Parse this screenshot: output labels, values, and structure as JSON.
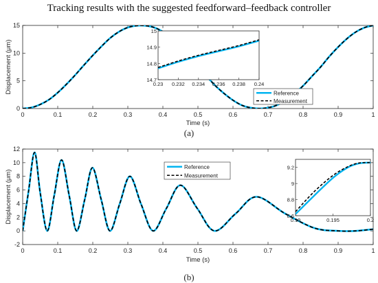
{
  "title": "Tracking results with the suggested feedforward–feedback controller",
  "colors": {
    "reference": "#00b4f0",
    "measurement": "#000000",
    "axis": "#262626"
  },
  "chart_data": [
    {
      "type": "line",
      "panel": "(a)",
      "caption": "(a)",
      "xlabel": "Time (s)",
      "ylabel": "Displacement (μm)",
      "xlim": [
        0,
        1
      ],
      "ylim": [
        0,
        15
      ],
      "xticks": [
        0,
        0.1,
        0.2,
        0.3,
        0.4,
        0.5,
        0.6,
        0.7,
        0.8,
        0.9,
        1
      ],
      "xtick_labels": [
        "0",
        "0.1",
        "0.2",
        "0.3",
        "0.4",
        "0.5",
        "0.6",
        "0.7",
        "0.8",
        "0.9",
        "1"
      ],
      "yticks": [
        0,
        5,
        10,
        15
      ],
      "ytick_labels": [
        "0",
        "5",
        "10",
        "15"
      ],
      "grid": false,
      "legend_position": "bottom-right",
      "x": [
        0,
        0.025,
        0.05,
        0.075,
        0.1,
        0.125,
        0.15,
        0.175,
        0.2,
        0.225,
        0.25,
        0.275,
        0.3,
        0.325,
        0.35,
        0.375,
        0.4,
        0.425,
        0.45,
        0.475,
        0.5,
        0.525,
        0.55,
        0.575,
        0.6,
        0.625,
        0.65,
        0.675,
        0.7,
        0.725,
        0.75,
        0.775,
        0.8,
        0.825,
        0.85,
        0.875,
        0.9,
        0.925,
        0.95,
        0.975,
        1
      ],
      "series": [
        {
          "name": "Reference",
          "style": "solid",
          "values": [
            0,
            0.18,
            0.73,
            1.6,
            2.87,
            4.39,
            6.06,
            7.85,
            9.59,
            11.23,
            12.74,
            13.87,
            14.63,
            14.95,
            14.95,
            14.63,
            13.87,
            12.74,
            11.23,
            9.59,
            7.5,
            5.8,
            4.1,
            2.7,
            1.5,
            0.6,
            0.15,
            0,
            0.15,
            0.6,
            1.5,
            2.7,
            4.1,
            5.8,
            7.5,
            9.4,
            11.1,
            12.6,
            13.8,
            14.6,
            15
          ]
        },
        {
          "name": "Measurement",
          "style": "dashed",
          "values": [
            0,
            0.18,
            0.73,
            1.6,
            2.87,
            4.39,
            6.06,
            7.85,
            9.59,
            11.23,
            12.74,
            13.87,
            14.63,
            14.95,
            14.95,
            14.63,
            13.87,
            12.74,
            11.23,
            9.59,
            7.5,
            5.8,
            4.1,
            2.7,
            1.5,
            0.6,
            0.15,
            0,
            0.15,
            0.6,
            1.5,
            2.7,
            4.1,
            5.8,
            7.5,
            9.4,
            11.1,
            12.6,
            13.8,
            14.6,
            15
          ]
        }
      ],
      "inset": {
        "xlim": [
          0.23,
          0.24
        ],
        "ylim": [
          14.7,
          15
        ],
        "xticks": [
          0.23,
          0.232,
          0.234,
          0.236,
          0.238,
          0.24
        ],
        "xtick_labels": [
          "0.23",
          "0.232",
          "0.234",
          "0.236",
          "0.238",
          "0.24"
        ],
        "yticks": [
          14.7,
          14.8,
          14.9,
          15
        ],
        "ytick_labels": [
          "14.7",
          "14.8",
          "14.9",
          "15"
        ],
        "x": [
          0.23,
          0.232,
          0.234,
          0.236,
          0.238,
          0.24
        ],
        "series": [
          {
            "name": "Reference",
            "values": [
              14.77,
              14.81,
              14.845,
              14.875,
              14.905,
              14.94
            ]
          },
          {
            "name": "Measurement",
            "values": [
              14.775,
              14.815,
              14.85,
              14.88,
              14.91,
              14.945
            ]
          }
        ]
      }
    },
    {
      "type": "line",
      "panel": "(b)",
      "caption": "(b)",
      "xlabel": "Time (s)",
      "ylabel": "Displacement (μm)",
      "xlim": [
        0,
        1
      ],
      "ylim": [
        -2,
        12
      ],
      "xticks": [
        0,
        0.1,
        0.2,
        0.3,
        0.4,
        0.5,
        0.6,
        0.7,
        0.8,
        0.9,
        1
      ],
      "xtick_labels": [
        "0",
        "0.1",
        "0.2",
        "0.3",
        "0.4",
        "0.5",
        "0.6",
        "0.7",
        "0.8",
        "0.9",
        "1"
      ],
      "yticks": [
        -2,
        0,
        2,
        4,
        6,
        8,
        10,
        12
      ],
      "ytick_labels": [
        "-2",
        "0",
        "2",
        "4",
        "6",
        "8",
        "10",
        "12"
      ],
      "grid": false,
      "legend_position": "top-center",
      "x": [
        0,
        0.0167,
        0.034,
        0.05,
        0.07,
        0.09,
        0.111,
        0.133,
        0.154,
        0.177,
        0.199,
        0.224,
        0.249,
        0.277,
        0.306,
        0.338,
        0.372,
        0.41,
        0.45,
        0.498,
        0.547,
        0.607,
        0.667,
        0.75,
        0.833,
        0.9,
        0.95,
        1.0
      ],
      "series": [
        {
          "name": "Reference",
          "style": "solid",
          "values": [
            0,
            5.8,
            11.5,
            5.6,
            0,
            5.2,
            10.4,
            5.1,
            0,
            4.6,
            9.26,
            4.6,
            0,
            4.0,
            8.0,
            3.9,
            0,
            3.3,
            6.7,
            3.3,
            0,
            2.5,
            5.0,
            2.5,
            0.4,
            0,
            0,
            0.25
          ]
        },
        {
          "name": "Measurement",
          "style": "dashed",
          "values": [
            0,
            5.8,
            11.5,
            5.6,
            0,
            5.2,
            10.4,
            5.1,
            0,
            4.6,
            9.26,
            4.6,
            0,
            4.0,
            8.0,
            3.9,
            0,
            3.3,
            6.7,
            3.3,
            0,
            2.5,
            5.0,
            2.5,
            0.4,
            0,
            0,
            0.25
          ]
        }
      ],
      "inset": {
        "xlim": [
          0.19,
          0.2
        ],
        "ylim": [
          8.6,
          9.3
        ],
        "xticks": [
          0.19,
          0.195,
          0.2
        ],
        "xtick_labels": [
          "0.19",
          "0.195",
          "0.2"
        ],
        "yticks": [
          8.6,
          8.8,
          9,
          9.2
        ],
        "ytick_labels": [
          "8.6",
          "8.8",
          "9",
          "9.2"
        ],
        "x": [
          0.19,
          0.1925,
          0.195,
          0.197,
          0.1985,
          0.2
        ],
        "series": [
          {
            "name": "Reference",
            "values": [
              8.62,
              8.85,
              9.07,
              9.2,
              9.25,
              9.26
            ]
          },
          {
            "name": "Measurement",
            "values": [
              8.65,
              8.9,
              9.1,
              9.21,
              9.255,
              9.26
            ]
          }
        ]
      }
    }
  ]
}
